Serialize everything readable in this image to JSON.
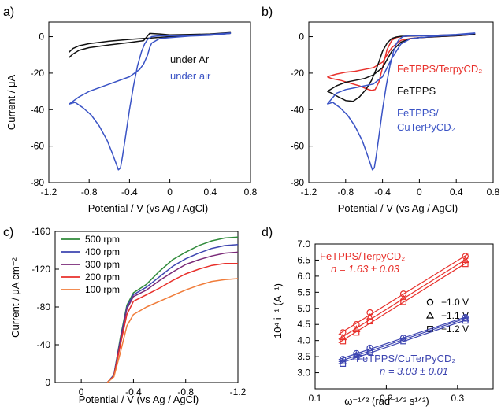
{
  "colors": {
    "blue": "#3a53c5",
    "black": "#111111",
    "red": "#e8302b",
    "green": "#2f8a3a",
    "navy": "#3d45b0",
    "purple": "#7a2a78",
    "orange": "#f07c3a"
  },
  "chart_data": [
    {
      "panel": "a)",
      "type": "line",
      "xlabel": "Potential / V (vs Ag / AgCl)",
      "ylabel": "Current / μA",
      "xlim": [
        -1.2,
        0.8
      ],
      "ylim": [
        -80,
        8
      ],
      "xticks": [
        "-1.2",
        "-0.8",
        "-0.4",
        "0",
        "0.4",
        "0.8"
      ],
      "yticks": [
        "0",
        "-20",
        "-40",
        "-60",
        "-80"
      ],
      "series": [
        {
          "name": "under Ar",
          "color": "black",
          "x": [
            -1.0,
            -0.96,
            -0.9,
            -0.8,
            -0.6,
            -0.4,
            -0.26,
            -0.2,
            -0.1,
            0.0,
            0.2,
            0.4,
            0.6,
            0.6,
            0.4,
            0.2,
            0.0,
            -0.2,
            -0.4,
            -0.6,
            -0.8,
            -0.9,
            -0.96,
            -1.0
          ],
          "y": [
            -11.5,
            -9.5,
            -7.5,
            -6.0,
            -4.5,
            -3.2,
            -2.2,
            1.8,
            1.5,
            1.0,
            1.2,
            1.5,
            2.2,
            1.8,
            1.0,
            0.5,
            0.0,
            -0.8,
            -1.5,
            -2.5,
            -3.8,
            -5.0,
            -6.5,
            -8.5
          ]
        },
        {
          "name": "under air",
          "color": "blue",
          "x": [
            -1.0,
            -0.94,
            -0.86,
            -0.78,
            -0.7,
            -0.62,
            -0.57,
            -0.53,
            -0.51,
            -0.49,
            -0.47,
            -0.44,
            -0.4,
            -0.36,
            -0.32,
            -0.28,
            -0.25,
            -0.22,
            -0.18,
            -0.1,
            0.0,
            0.2,
            0.4,
            0.6,
            0.6,
            0.4,
            0.2,
            0.0,
            -0.1,
            -0.18,
            -0.2,
            -0.22,
            -0.26,
            -0.3,
            -0.4,
            -0.6,
            -0.8,
            -0.9,
            -1.0
          ],
          "y": [
            -37.0,
            -36.0,
            -39.0,
            -43.0,
            -49.0,
            -57.0,
            -64.0,
            -70.0,
            -73.0,
            -72.0,
            -66.0,
            -55.0,
            -40.0,
            -27.0,
            -16.0,
            -8.0,
            -4.0,
            -1.5,
            0.0,
            0.5,
            0.5,
            0.8,
            1.2,
            2.0,
            1.8,
            0.8,
            0.3,
            -0.5,
            -1.0,
            -3.5,
            -6.0,
            -10.0,
            -15.0,
            -18.0,
            -22.0,
            -26.0,
            -30.0,
            -33.0,
            -37.0
          ]
        }
      ]
    },
    {
      "panel": "b)",
      "type": "line",
      "xlabel": "Potential / V (vs Ag / AgCl)",
      "ylabel": "",
      "xlim": [
        -1.2,
        0.8
      ],
      "ylim": [
        -80,
        8
      ],
      "xticks": [
        "-1.2",
        "-0.8",
        "-0.4",
        "0",
        "0.4",
        "0.8"
      ],
      "yticks": [
        "0",
        "-20",
        "-40",
        "-60",
        "-80"
      ],
      "legend": [
        "FeTPPS/TerpyCD₂",
        "FeTPPS",
        "FeTPPS/",
        "CuTerPyCD₂"
      ],
      "series": [
        {
          "name": "FeTPPS/TerpyCD2",
          "color": "red",
          "x": [
            -1.0,
            -0.95,
            -0.85,
            -0.75,
            -0.65,
            -0.58,
            -0.52,
            -0.48,
            -0.44,
            -0.4,
            -0.35,
            -0.3,
            -0.25,
            -0.2,
            -0.1,
            0.0,
            0.2,
            0.4,
            0.6,
            0.6,
            0.4,
            0.2,
            0.0,
            -0.1,
            -0.2,
            -0.3,
            -0.4,
            -0.5,
            -0.6,
            -0.7,
            -0.8,
            -0.9,
            -1.0
          ],
          "y": [
            -22.0,
            -23.0,
            -24.0,
            -25.5,
            -27.0,
            -28.5,
            -29.5,
            -29.0,
            -25.0,
            -17.0,
            -7.0,
            -2.0,
            -0.5,
            0.0,
            0.3,
            0.5,
            0.8,
            1.0,
            1.5,
            1.2,
            0.5,
            0.0,
            -0.5,
            -1.0,
            -2.0,
            -6.0,
            -14.0,
            -17.0,
            -18.0,
            -19.0,
            -19.5,
            -20.5,
            -22.0
          ]
        },
        {
          "name": "FeTPPS",
          "color": "black",
          "x": [
            -1.0,
            -0.95,
            -0.88,
            -0.8,
            -0.72,
            -0.65,
            -0.58,
            -0.52,
            -0.47,
            -0.44,
            -0.4,
            -0.35,
            -0.3,
            -0.25,
            -0.2,
            -0.1,
            0.0,
            0.2,
            0.4,
            0.6,
            0.6,
            0.4,
            0.2,
            0.0,
            -0.1,
            -0.2,
            -0.3,
            -0.4,
            -0.5,
            -0.6,
            -0.7,
            -0.8,
            -0.9,
            -1.0
          ],
          "y": [
            -30.0,
            -31.0,
            -33.0,
            -35.0,
            -35.5,
            -33.0,
            -29.0,
            -24.0,
            -18.0,
            -14.0,
            -8.0,
            -3.5,
            -1.0,
            -0.2,
            0.2,
            0.3,
            0.5,
            0.8,
            1.0,
            1.5,
            1.2,
            0.5,
            0.0,
            -0.5,
            -1.2,
            -3.0,
            -8.0,
            -17.0,
            -21.0,
            -23.0,
            -24.0,
            -25.0,
            -27.0,
            -30.0
          ]
        },
        {
          "name": "FeTPPS/CuTerPyCD2",
          "color": "blue",
          "x": [
            -1.0,
            -0.94,
            -0.86,
            -0.78,
            -0.7,
            -0.62,
            -0.57,
            -0.53,
            -0.51,
            -0.49,
            -0.47,
            -0.44,
            -0.4,
            -0.36,
            -0.32,
            -0.28,
            -0.25,
            -0.22,
            -0.18,
            -0.1,
            0.0,
            0.2,
            0.4,
            0.6,
            0.6,
            0.4,
            0.2,
            0.0,
            -0.1,
            -0.2,
            -0.3,
            -0.4,
            -0.5,
            -0.6,
            -0.7,
            -0.8,
            -0.9,
            -1.0
          ],
          "y": [
            -37.0,
            -36.0,
            -39.0,
            -43.0,
            -49.0,
            -57.0,
            -64.0,
            -70.0,
            -73.0,
            -72.0,
            -66.0,
            -55.0,
            -40.0,
            -27.0,
            -16.0,
            -8.0,
            -4.0,
            -1.5,
            0.0,
            0.5,
            0.5,
            0.8,
            1.2,
            2.0,
            1.8,
            0.8,
            0.3,
            -0.5,
            -1.2,
            -4.0,
            -12.0,
            -22.0,
            -26.0,
            -27.0,
            -28.0,
            -29.0,
            -31.0,
            -37.0
          ]
        }
      ]
    },
    {
      "panel": "c)",
      "type": "line",
      "xlabel": "Potential / V (vs Ag / AgCl)",
      "ylabel": "Current / μA cm⁻²",
      "xlim": [
        0.2,
        -1.2
      ],
      "ylim": [
        0,
        -160
      ],
      "xticks": [
        "0",
        "-0.4",
        "-0.8",
        "-1.2"
      ],
      "xtick_values": [
        0,
        -0.4,
        -0.8,
        -1.2
      ],
      "yticks": [
        "-160",
        "-120",
        "-80",
        "-40",
        "0"
      ],
      "ytick_values": [
        -160,
        -120,
        -80,
        -40,
        0
      ],
      "series": [
        {
          "name": "500 rpm",
          "color": "green",
          "x": [
            -0.2,
            -0.25,
            -0.3,
            -0.35,
            -0.4,
            -0.5,
            -0.6,
            -0.7,
            -0.8,
            -0.9,
            -1.0,
            -1.1,
            -1.2
          ],
          "y": [
            0,
            -8,
            -48,
            -82,
            -95,
            -104,
            -118,
            -130,
            -138,
            -145,
            -150,
            -153,
            -154
          ]
        },
        {
          "name": "400 rpm",
          "color": "navy",
          "x": [
            -0.2,
            -0.25,
            -0.3,
            -0.35,
            -0.4,
            -0.5,
            -0.6,
            -0.7,
            -0.8,
            -0.9,
            -1.0,
            -1.1,
            -1.2
          ],
          "y": [
            0,
            -8,
            -46,
            -80,
            -93,
            -101,
            -112,
            -123,
            -131,
            -137,
            -142,
            -145,
            -146
          ]
        },
        {
          "name": "300 rpm",
          "color": "purple",
          "x": [
            -0.2,
            -0.25,
            -0.3,
            -0.35,
            -0.4,
            -0.5,
            -0.6,
            -0.7,
            -0.8,
            -0.9,
            -1.0,
            -1.1,
            -1.2
          ],
          "y": [
            0,
            -7,
            -44,
            -78,
            -91,
            -98,
            -108,
            -117,
            -125,
            -130,
            -134,
            -137,
            -138
          ]
        },
        {
          "name": "200 rpm",
          "color": "red",
          "x": [
            -0.2,
            -0.25,
            -0.3,
            -0.35,
            -0.4,
            -0.5,
            -0.6,
            -0.7,
            -0.8,
            -0.9,
            -1.0,
            -1.1,
            -1.2
          ],
          "y": [
            0,
            -7,
            -40,
            -72,
            -86,
            -93,
            -100,
            -108,
            -115,
            -120,
            -124,
            -126,
            -126
          ]
        },
        {
          "name": "100 rpm",
          "color": "orange",
          "x": [
            -0.2,
            -0.25,
            -0.3,
            -0.35,
            -0.4,
            -0.5,
            -0.6,
            -0.7,
            -0.8,
            -0.9,
            -1.0,
            -1.1,
            -1.2
          ],
          "y": [
            0,
            -6,
            -32,
            -60,
            -72,
            -80,
            -86,
            -92,
            -98,
            -103,
            -107,
            -109,
            -110
          ]
        }
      ]
    },
    {
      "panel": "d)",
      "type": "scatter",
      "xlabel": "ω⁻¹ᐟ² (rad⁻¹ᐟ² s¹ᐟ²)",
      "ylabel": "10⁴ i⁻¹ (A⁻¹)",
      "xlim": [
        0.1,
        0.35
      ],
      "ylim": [
        2.5,
        7.0
      ],
      "xticks": [
        "0.1",
        "0.2",
        "0.3"
      ],
      "yticks": [
        "3.0",
        "3.5",
        "4.0",
        "4.5",
        "5.0",
        "5.5",
        "6.0",
        "6.5",
        "7.0"
      ],
      "annotations": {
        "red_label": "FeTPPS/TerpyCD₂",
        "red_n": "n = 1.63 ± 0.03",
        "blue_label": "FeTPPS/CuTerPyCD₂",
        "blue_n": "n = 3.03 ± 0.01"
      },
      "marker_legend": [
        "−1.0 V",
        "−1.1 V",
        "−1.2 V"
      ],
      "x": [
        0.139,
        0.158,
        0.177,
        0.224,
        0.311
      ],
      "series": [
        {
          "name": "FeTPPS/TerpyCD2 -1.0 V",
          "color": "red",
          "marker": "circle",
          "y": [
            4.25,
            4.5,
            4.87,
            5.45,
            6.62
          ]
        },
        {
          "name": "FeTPPS/TerpyCD2 -1.1 V",
          "color": "red",
          "marker": "triangle",
          "y": [
            4.1,
            4.35,
            4.72,
            5.3,
            6.5
          ]
        },
        {
          "name": "FeTPPS/TerpyCD2 -1.2 V",
          "color": "red",
          "marker": "square",
          "y": [
            3.98,
            4.25,
            4.6,
            5.2,
            6.38
          ]
        },
        {
          "name": "FeTPPS/CuTerPyCD2 -1.0 V",
          "color": "navy",
          "marker": "circle",
          "y": [
            3.42,
            3.6,
            3.77,
            4.08,
            4.72
          ]
        },
        {
          "name": "FeTPPS/CuTerPyCD2 -1.1 V",
          "color": "navy",
          "marker": "triangle",
          "y": [
            3.35,
            3.55,
            3.7,
            4.03,
            4.68
          ]
        },
        {
          "name": "FeTPPS/CuTerPyCD2 -1.2 V",
          "color": "navy",
          "marker": "square",
          "y": [
            3.28,
            3.48,
            3.65,
            3.98,
            4.62
          ]
        }
      ]
    }
  ]
}
